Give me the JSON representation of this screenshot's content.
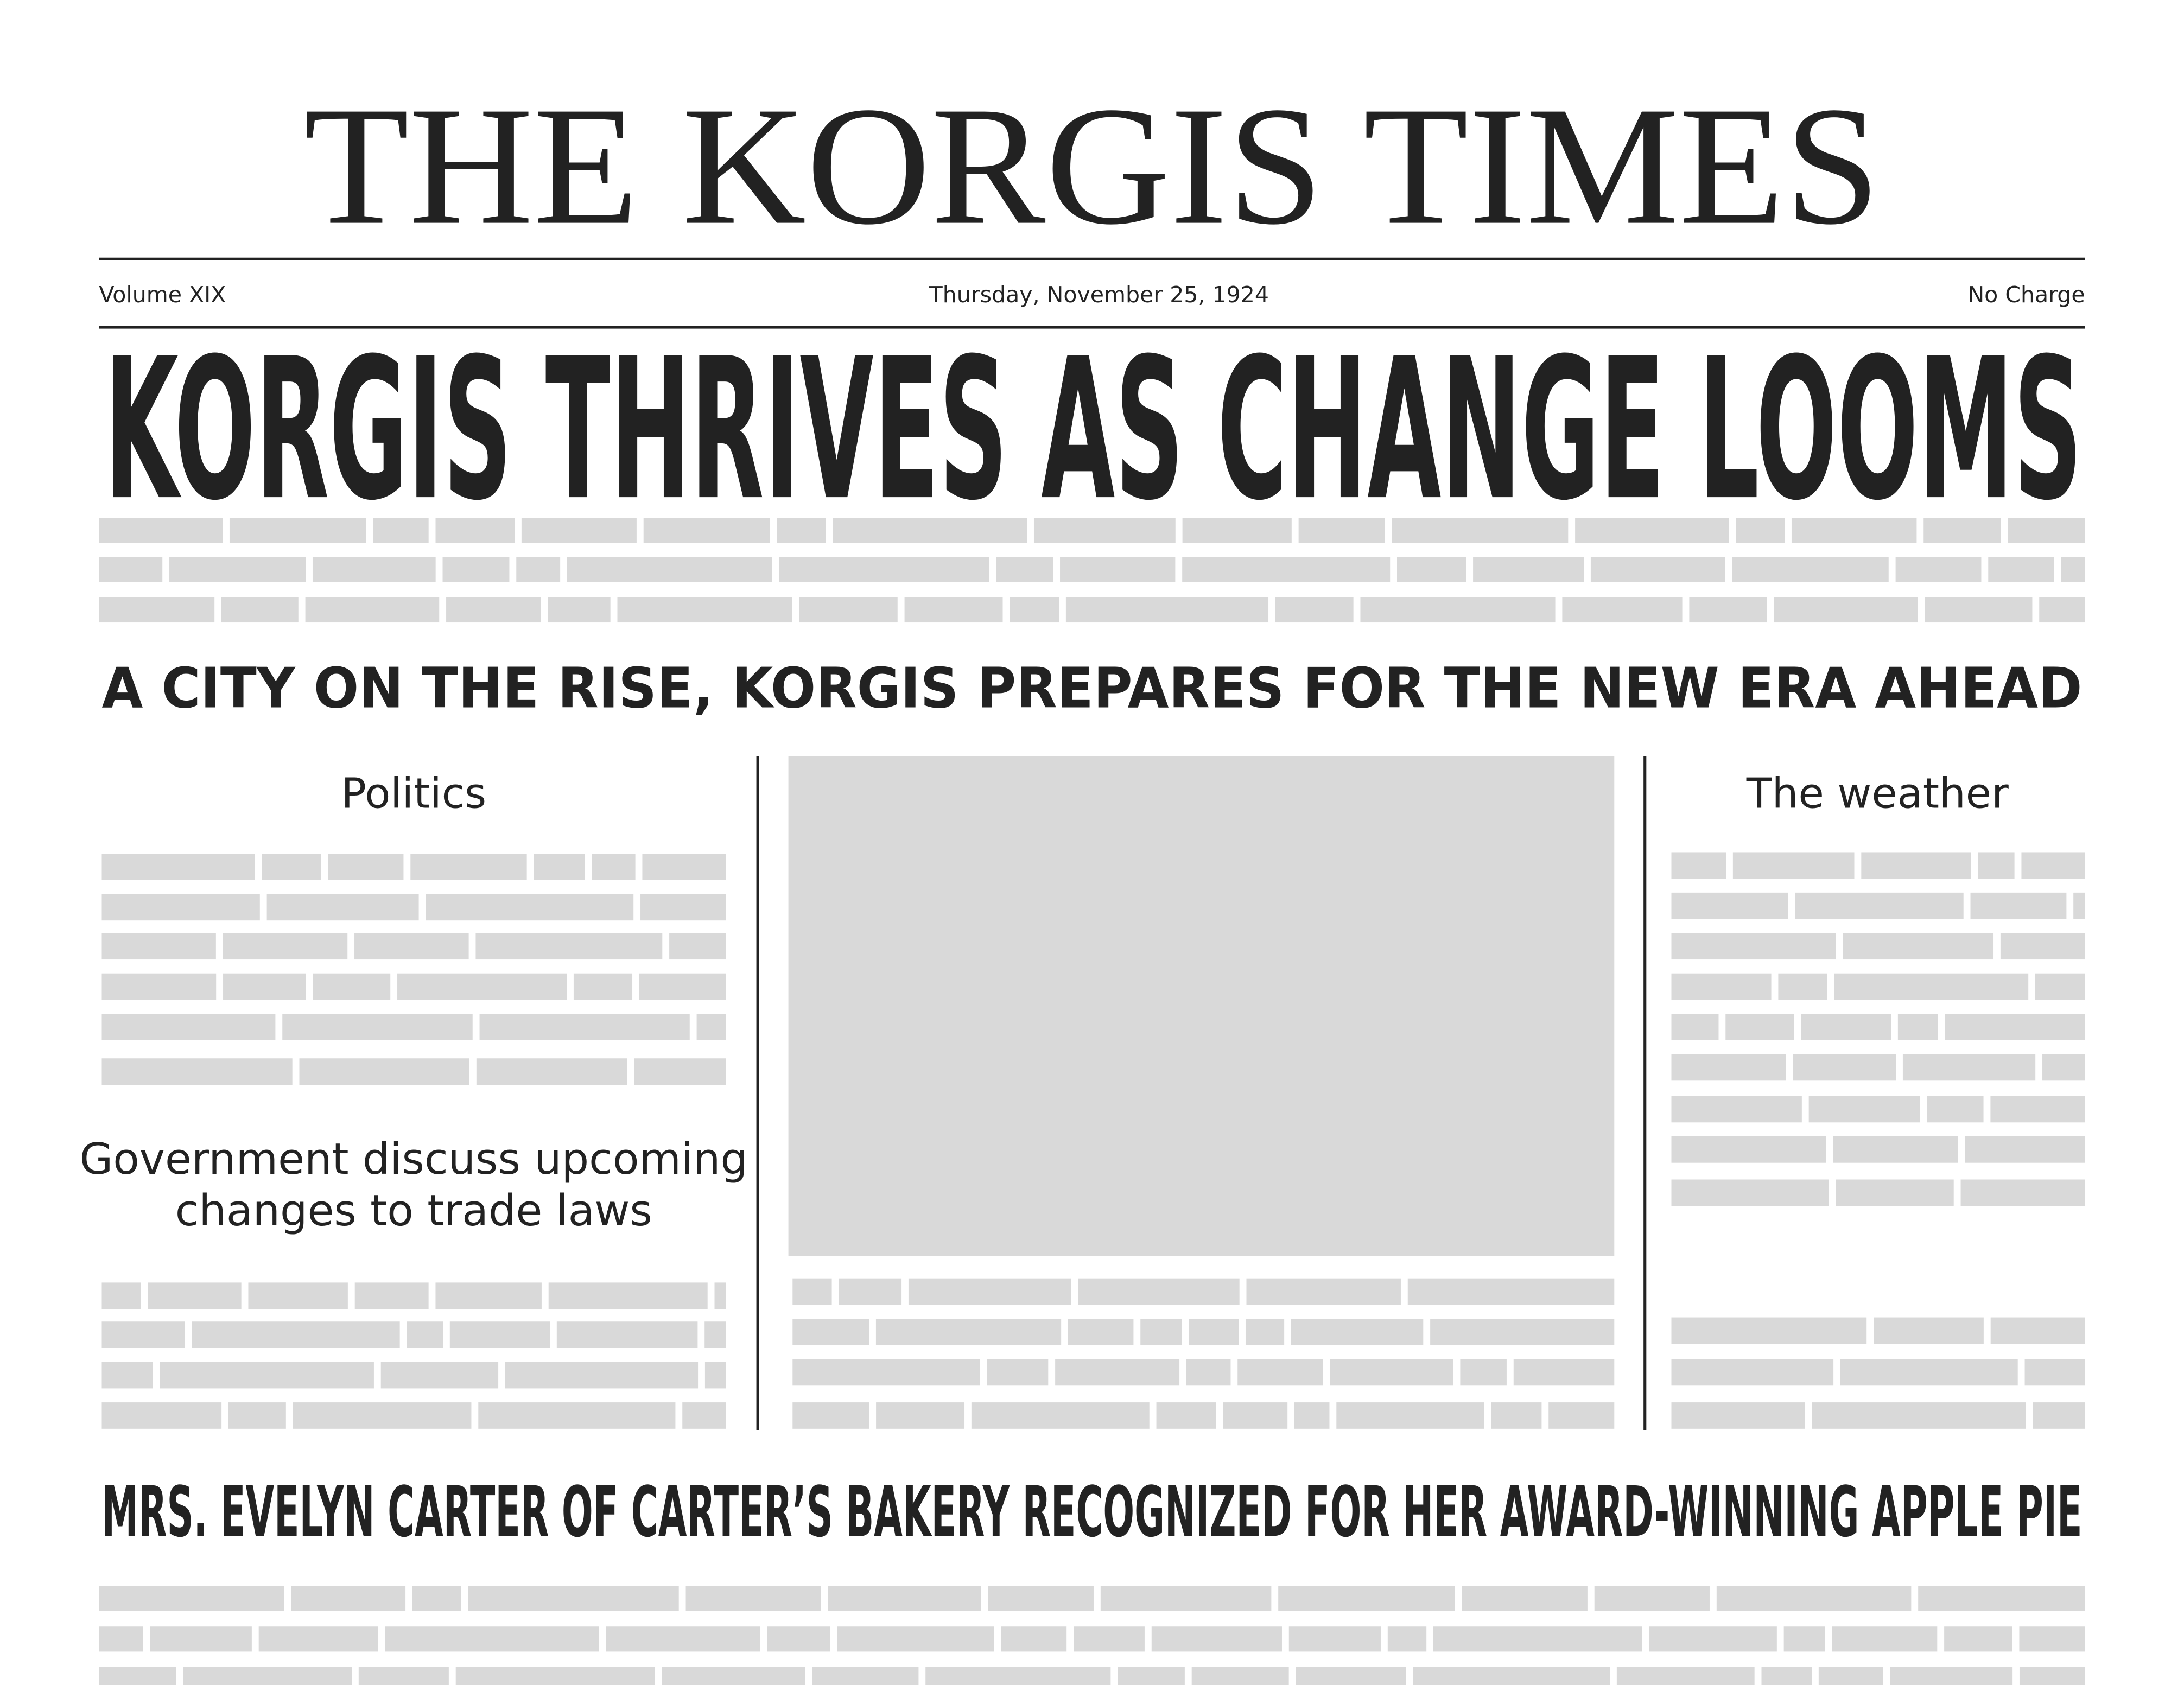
{
  "header": {
    "title": "THE KORGIS TIMES",
    "volume": "Volume XIX",
    "date": "Thursday, November 25, 1924",
    "price": "No Charge"
  },
  "headline": "KORGIS THRIVES AS CHANGE LOOMS",
  "subheadline": "A CITY ON THE RISE, KORGIS PREPARES FOR THE NEW ERA AHEAD",
  "left_column": {
    "heading": "Politics",
    "subheading": [
      "Government discuss upcoming",
      "changes to trade laws"
    ]
  },
  "right_column": {
    "heading": "The weather"
  },
  "bottom_headline": "MRS. EVELYN CARTER OF CARTER’S BAKERY RECOGNIZED FOR HER AWARD-WINNING APPLE PIE"
}
